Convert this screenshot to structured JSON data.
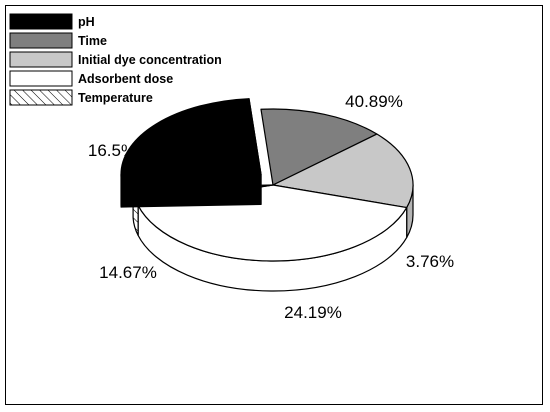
{
  "chart_data": {
    "type": "pie",
    "style": "3d-exploded",
    "title": "",
    "legend_position": "top-left",
    "slices": [
      {
        "name": "pH",
        "value": 24.19,
        "label": "24.19%",
        "fill": "#000000",
        "side": "#000000",
        "exploded": true
      },
      {
        "name": "Time",
        "value": 14.67,
        "label": "14.67%",
        "fill": "#7f7f7f",
        "side": "#6a6a6a",
        "exploded": false
      },
      {
        "name": "Initial dye concentration",
        "value": 16.5,
        "label": "16.5%",
        "fill": "#c8c8c8",
        "side": "#b4b4b4",
        "exploded": false
      },
      {
        "name": "Adsorbent dose",
        "value": 40.89,
        "label": "40.89%",
        "fill": "#ffffff",
        "side": "#ffffff",
        "exploded": false
      },
      {
        "name": "Temperature",
        "value": 3.76,
        "label": "3.76%",
        "fill": "hatch",
        "side": "hatch",
        "exploded": false
      }
    ]
  }
}
